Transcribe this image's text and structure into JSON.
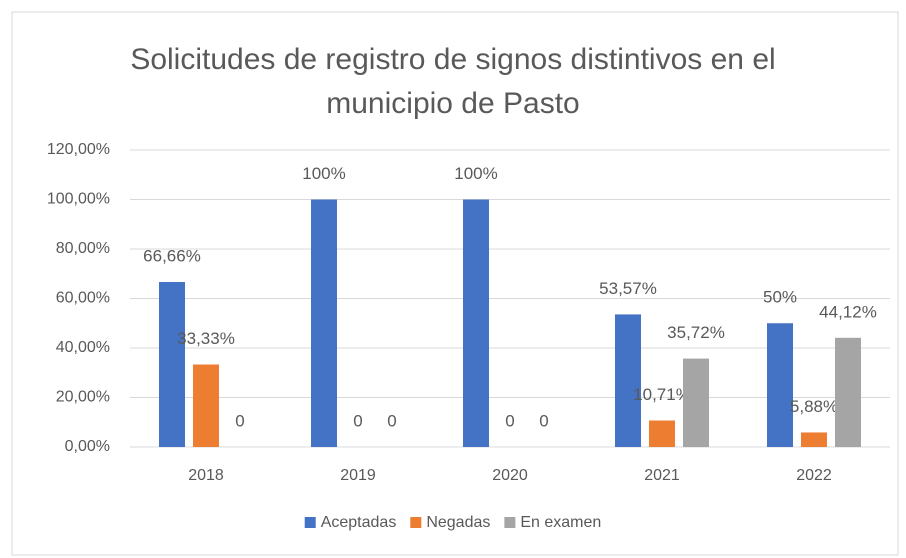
{
  "chart_data": {
    "type": "bar",
    "title": "Solicitudes de registro de signos distintivos en el municipio de Pasto",
    "categories": [
      "2018",
      "2019",
      "2020",
      "2021",
      "2022"
    ],
    "series": [
      {
        "name": "Aceptadas",
        "color": "#4472c4",
        "values": [
          66.66,
          100,
          100,
          53.57,
          50
        ],
        "value_labels": [
          "66,66%",
          "100%",
          "100%",
          "53,57%",
          "50%"
        ]
      },
      {
        "name": "Negadas",
        "color": "#ed7d31",
        "values": [
          33.33,
          0,
          0,
          10.71,
          5.88
        ],
        "value_labels": [
          "33,33%",
          "0",
          "0",
          "10,71%",
          "5,88%"
        ]
      },
      {
        "name": "En examen",
        "color": "#a5a5a5",
        "values": [
          0,
          0,
          0,
          35.72,
          44.12
        ],
        "value_labels": [
          "0",
          "0",
          "0",
          "35,72%",
          "44,12%"
        ]
      }
    ],
    "ylim": [
      0,
      120
    ],
    "yticks": [
      {
        "value": 0,
        "label": "0,00%"
      },
      {
        "value": 20,
        "label": "20,00%"
      },
      {
        "value": 40,
        "label": "40,00%"
      },
      {
        "value": 60,
        "label": "60,00%"
      },
      {
        "value": 80,
        "label": "80,00%"
      },
      {
        "value": 100,
        "label": "100,00%"
      },
      {
        "value": 120,
        "label": "120,00%"
      }
    ],
    "grid": true,
    "legend": "bottom"
  }
}
